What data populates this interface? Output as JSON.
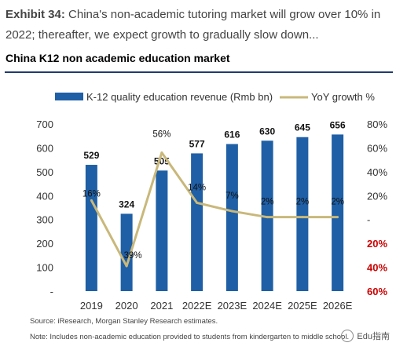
{
  "header": {
    "exhibit_label": "Exhibit 34:",
    "exhibit_text": "China's non-academic tutoring market will grow over 10% in 2022; thereafter, we expect growth to gradually slow down..."
  },
  "chart_title": "China K12 non academic education market",
  "chart_data": {
    "type": "bar",
    "categories": [
      "2019",
      "2020",
      "2021",
      "2022E",
      "2023E",
      "2024E",
      "2025E",
      "2026E"
    ],
    "series": [
      {
        "name": "K-12 quality education revenue (Rmb bn)",
        "type": "bar",
        "axis": "left",
        "color": "#1f5fa6",
        "values": [
          529,
          324,
          505,
          577,
          616,
          630,
          645,
          656
        ],
        "labels": [
          "529",
          "324",
          "505",
          "577",
          "616",
          "630",
          "645",
          "656"
        ]
      },
      {
        "name": "YoY growth %",
        "type": "line",
        "axis": "right",
        "color": "#c9b87a",
        "values": [
          16,
          -39,
          56,
          14,
          7,
          2,
          2,
          2
        ],
        "labels": [
          "16%",
          "39%",
          "56%",
          "14%",
          "7%",
          "2%",
          "2%",
          "2%"
        ]
      }
    ],
    "y_left": {
      "ylim": [
        0,
        700
      ],
      "ticks": [
        "700",
        "600",
        "500",
        "400",
        "300",
        "200",
        "100",
        "-"
      ]
    },
    "y_right": {
      "ylim": [
        -60,
        80
      ],
      "ticks": [
        "80%",
        "60%",
        "40%",
        "20%",
        "-",
        "20%",
        "40%",
        "60%"
      ],
      "negative_color": "#cc0000"
    },
    "legend_position": "top",
    "grid": false
  },
  "footnotes": {
    "source": "Source: iResearch, Morgan Stanley Research estimates.",
    "note": "Note: Includes non-academic education provided to students from kindergarten to middle school."
  },
  "watermark": "Edu指南"
}
